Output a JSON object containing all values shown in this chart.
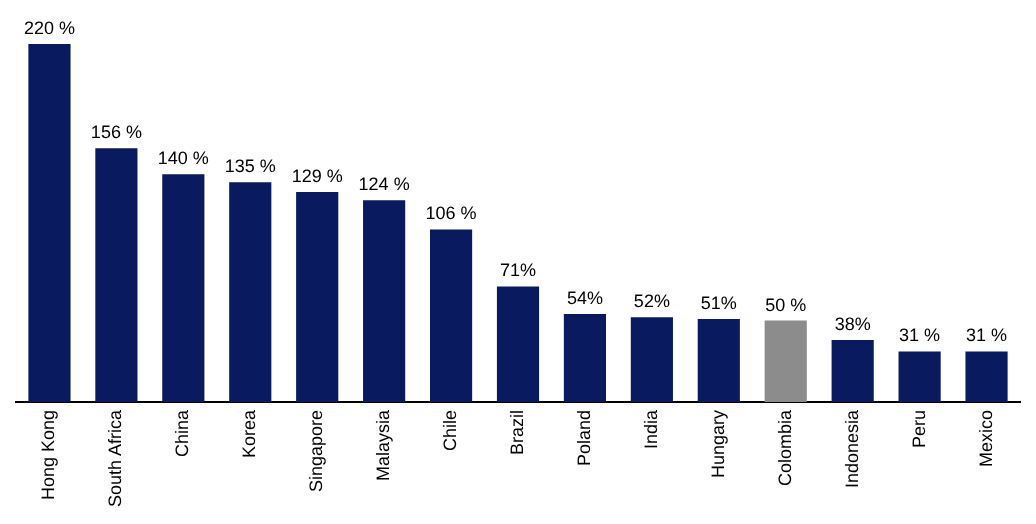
{
  "chart_data": {
    "type": "bar",
    "categories": [
      "Hong Kong",
      "South Africa",
      "China",
      "Korea",
      "Singapore",
      "Malaysia",
      "Chile",
      "Brazil",
      "Poland",
      "India",
      "Hungary",
      "Colombia",
      "Indonesia",
      "Peru",
      "Mexico"
    ],
    "values": [
      220,
      156,
      140,
      135,
      129,
      124,
      106,
      71,
      54,
      52,
      51,
      50,
      38,
      31,
      31
    ],
    "colors": [
      "#0a1a5e",
      "#0a1a5e",
      "#0a1a5e",
      "#0a1a5e",
      "#0a1a5e",
      "#0a1a5e",
      "#0a1a5e",
      "#0a1a5e",
      "#0a1a5e",
      "#0a1a5e",
      "#0a1a5e",
      "#8c8c8c",
      "#0a1a5e",
      "#0a1a5e",
      "#0a1a5e"
    ],
    "value_labels": [
      "220 %",
      "156 %",
      "140 %",
      "135 %",
      "129 %",
      "124 %",
      "106 %",
      "71%",
      "54%",
      "52%",
      "51%",
      "50 %",
      "38%",
      "31 %",
      "31 %"
    ],
    "legend": false,
    "grid": false
  }
}
